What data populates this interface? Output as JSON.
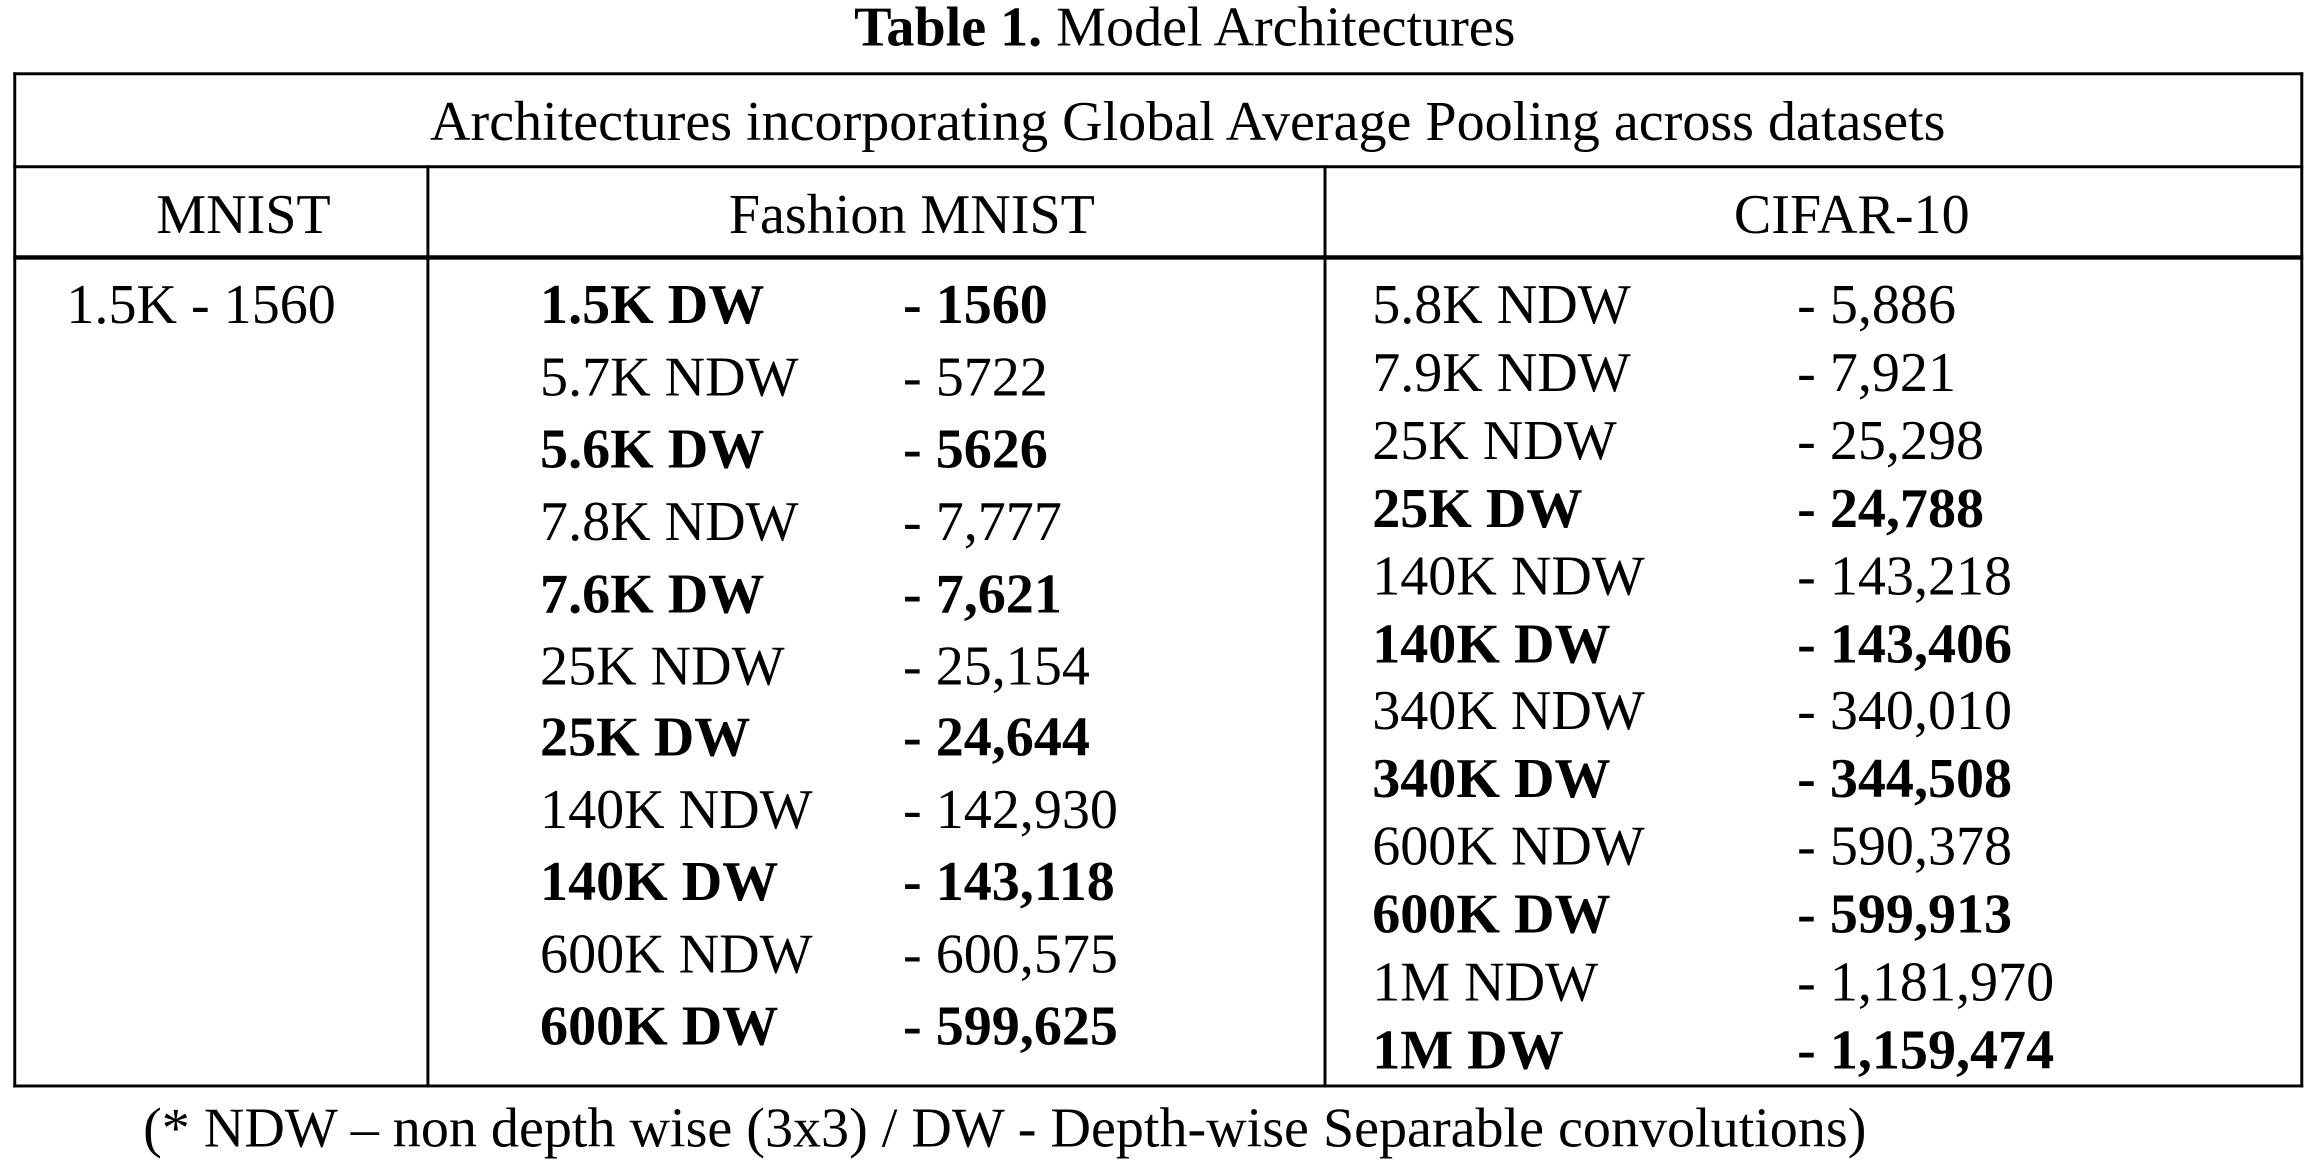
{
  "title": {
    "label": "Table 1.",
    "text": "Model Architectures"
  },
  "table": {
    "caption": "Architectures incorporating Global Average Pooling across datasets",
    "columns": [
      "MNIST",
      "Fashion MNIST",
      "CIFAR-10"
    ],
    "mnist": [
      "1.5K - 1560"
    ],
    "fashion_mnist": [
      {
        "name": "1.5K DW",
        "params": "- 1560",
        "bold": true
      },
      {
        "name": "5.7K NDW",
        "params": "- 5722",
        "bold": false
      },
      {
        "name": "5.6K DW",
        "params": "- 5626",
        "bold": true
      },
      {
        "name": "7.8K NDW",
        "params": "- 7,777",
        "bold": false
      },
      {
        "name": "7.6K DW",
        "params": "- 7,621",
        "bold": true
      },
      {
        "name": "25K NDW",
        "params": "- 25,154",
        "bold": false
      },
      {
        "name": "25K DW",
        "params": "- 24,644",
        "bold": true
      },
      {
        "name": "140K NDW",
        "params": "- 142,930",
        "bold": false
      },
      {
        "name": "140K DW",
        "params": "- 143,118",
        "bold": true
      },
      {
        "name": "600K NDW",
        "params": "- 600,575",
        "bold": false
      },
      {
        "name": "600K DW",
        "params": "- 599,625",
        "bold": true
      }
    ],
    "cifar_10": [
      {
        "name": "5.8K NDW",
        "params": "- 5,886",
        "bold": false
      },
      {
        "name": "7.9K NDW",
        "params": "- 7,921",
        "bold": false
      },
      {
        "name": "25K NDW",
        "params": "- 25,298",
        "bold": false
      },
      {
        "name": "25K DW",
        "params": "- 24,788",
        "bold": true
      },
      {
        "name": "140K NDW",
        "params": "- 143,218",
        "bold": false
      },
      {
        "name": "140K DW",
        "params": "- 143,406",
        "bold": true
      },
      {
        "name": "340K NDW",
        "params": "- 340,010",
        "bold": false
      },
      {
        "name": "340K DW",
        "params": "- 344,508",
        "bold": true
      },
      {
        "name": "600K NDW",
        "params": "- 590,378",
        "bold": false
      },
      {
        "name": "600K DW",
        "params": "- 599,913",
        "bold": true
      },
      {
        "name": "1M NDW",
        "params": "- 1,181,970",
        "bold": false
      },
      {
        "name": "1M DW",
        "params": "- 1,159,474",
        "bold": true
      }
    ]
  },
  "footnote": "(* NDW – non depth wise (3x3) / DW - Depth-wise Separable convolutions)"
}
